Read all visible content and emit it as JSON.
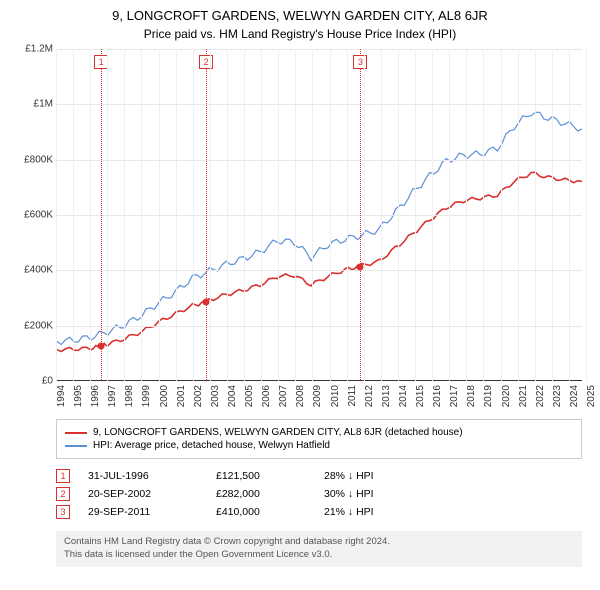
{
  "title": {
    "main": "9, LONGCROFT GARDENS, WELWYN GARDEN CITY, AL8 6JR",
    "sub": "Price paid vs. HM Land Registry's House Price Index (HPI)",
    "main_fontsize": 13,
    "sub_fontsize": 12
  },
  "chart": {
    "type": "line",
    "background_color": "#ffffff",
    "grid_color": "#e8e8e8",
    "x_axis": {
      "min": 1994,
      "max": 2025,
      "ticks": [
        1994,
        1995,
        1996,
        1997,
        1998,
        1999,
        2000,
        2001,
        2002,
        2003,
        2004,
        2005,
        2006,
        2007,
        2008,
        2009,
        2010,
        2011,
        2012,
        2013,
        2014,
        2015,
        2016,
        2017,
        2018,
        2019,
        2020,
        2021,
        2022,
        2023,
        2024,
        2025
      ],
      "label_fontsize": 10
    },
    "y_axis": {
      "min": 0,
      "max": 1200000,
      "ticks": [
        {
          "v": 0,
          "label": "£0"
        },
        {
          "v": 200000,
          "label": "£200K"
        },
        {
          "v": 400000,
          "label": "£400K"
        },
        {
          "v": 600000,
          "label": "£600K"
        },
        {
          "v": 800000,
          "label": "£800K"
        },
        {
          "v": 1000000,
          "label": "£1M"
        },
        {
          "v": 1200000,
          "label": "£1.2M"
        }
      ],
      "label_fontsize": 10
    },
    "series": [
      {
        "name": "property",
        "label": "9, LONGCROFT GARDENS, WELWYN GARDEN CITY, AL8 6JR (detached house)",
        "color": "#d93030",
        "line_width": 1.6,
        "data": [
          {
            "x": 1994,
            "y": 110000
          },
          {
            "x": 1995,
            "y": 112000
          },
          {
            "x": 1996,
            "y": 115000
          },
          {
            "x": 1996.58,
            "y": 121500
          },
          {
            "x": 1997,
            "y": 130000
          },
          {
            "x": 1998,
            "y": 150000
          },
          {
            "x": 1999,
            "y": 175000
          },
          {
            "x": 2000,
            "y": 210000
          },
          {
            "x": 2001,
            "y": 240000
          },
          {
            "x": 2002,
            "y": 270000
          },
          {
            "x": 2002.72,
            "y": 282000
          },
          {
            "x": 2003,
            "y": 290000
          },
          {
            "x": 2004,
            "y": 310000
          },
          {
            "x": 2005,
            "y": 325000
          },
          {
            "x": 2006,
            "y": 345000
          },
          {
            "x": 2007,
            "y": 375000
          },
          {
            "x": 2008,
            "y": 380000
          },
          {
            "x": 2009,
            "y": 345000
          },
          {
            "x": 2010,
            "y": 375000
          },
          {
            "x": 2011,
            "y": 400000
          },
          {
            "x": 2011.75,
            "y": 410000
          },
          {
            "x": 2012,
            "y": 415000
          },
          {
            "x": 2013,
            "y": 430000
          },
          {
            "x": 2014,
            "y": 480000
          },
          {
            "x": 2015,
            "y": 530000
          },
          {
            "x": 2016,
            "y": 580000
          },
          {
            "x": 2017,
            "y": 625000
          },
          {
            "x": 2018,
            "y": 650000
          },
          {
            "x": 2019,
            "y": 660000
          },
          {
            "x": 2020,
            "y": 670000
          },
          {
            "x": 2021,
            "y": 720000
          },
          {
            "x": 2022,
            "y": 750000
          },
          {
            "x": 2023,
            "y": 735000
          },
          {
            "x": 2024,
            "y": 725000
          },
          {
            "x": 2025,
            "y": 720000
          }
        ]
      },
      {
        "name": "hpi",
        "label": "HPI: Average price, detached house, Welwyn Hatfield",
        "color": "#5b8fd6",
        "line_width": 1.2,
        "data": [
          {
            "x": 1994,
            "y": 140000
          },
          {
            "x": 1995,
            "y": 145000
          },
          {
            "x": 1996,
            "y": 155000
          },
          {
            "x": 1997,
            "y": 175000
          },
          {
            "x": 1998,
            "y": 200000
          },
          {
            "x": 1999,
            "y": 235000
          },
          {
            "x": 2000,
            "y": 280000
          },
          {
            "x": 2001,
            "y": 320000
          },
          {
            "x": 2002,
            "y": 370000
          },
          {
            "x": 2003,
            "y": 395000
          },
          {
            "x": 2004,
            "y": 420000
          },
          {
            "x": 2005,
            "y": 440000
          },
          {
            "x": 2006,
            "y": 465000
          },
          {
            "x": 2007,
            "y": 505000
          },
          {
            "x": 2008,
            "y": 500000
          },
          {
            "x": 2009,
            "y": 445000
          },
          {
            "x": 2010,
            "y": 490000
          },
          {
            "x": 2011,
            "y": 510000
          },
          {
            "x": 2012,
            "y": 525000
          },
          {
            "x": 2013,
            "y": 545000
          },
          {
            "x": 2014,
            "y": 610000
          },
          {
            "x": 2015,
            "y": 680000
          },
          {
            "x": 2016,
            "y": 740000
          },
          {
            "x": 2017,
            "y": 795000
          },
          {
            "x": 2018,
            "y": 815000
          },
          {
            "x": 2019,
            "y": 820000
          },
          {
            "x": 2020,
            "y": 840000
          },
          {
            "x": 2021,
            "y": 920000
          },
          {
            "x": 2022,
            "y": 970000
          },
          {
            "x": 2023,
            "y": 950000
          },
          {
            "x": 2024,
            "y": 930000
          },
          {
            "x": 2025,
            "y": 910000
          }
        ]
      }
    ],
    "event_markers": [
      {
        "n": "1",
        "x": 1996.58,
        "y": 121500
      },
      {
        "n": "2",
        "x": 2002.72,
        "y": 282000
      },
      {
        "n": "3",
        "x": 2011.75,
        "y": 410000
      }
    ],
    "marker_line_color": "#d93030",
    "marker_box_border": "#d93030"
  },
  "legend": {
    "border_color": "#cccccc",
    "items": [
      {
        "color": "#d93030",
        "label": "9, LONGCROFT GARDENS, WELWYN GARDEN CITY, AL8 6JR (detached house)"
      },
      {
        "color": "#5b8fd6",
        "label": "HPI: Average price, detached house, Welwyn Hatfield"
      }
    ]
  },
  "events_table": {
    "rows": [
      {
        "n": "1",
        "date": "31-JUL-1996",
        "price": "£121,500",
        "delta": "28% ↓ HPI"
      },
      {
        "n": "2",
        "date": "20-SEP-2002",
        "price": "£282,000",
        "delta": "30% ↓ HPI"
      },
      {
        "n": "3",
        "date": "29-SEP-2011",
        "price": "£410,000",
        "delta": "21% ↓ HPI"
      }
    ]
  },
  "attribution": {
    "line1": "Contains HM Land Registry data © Crown copyright and database right 2024.",
    "line2": "This data is licensed under the Open Government Licence v3.0.",
    "background": "#f2f2f2",
    "text_color": "#555555"
  }
}
